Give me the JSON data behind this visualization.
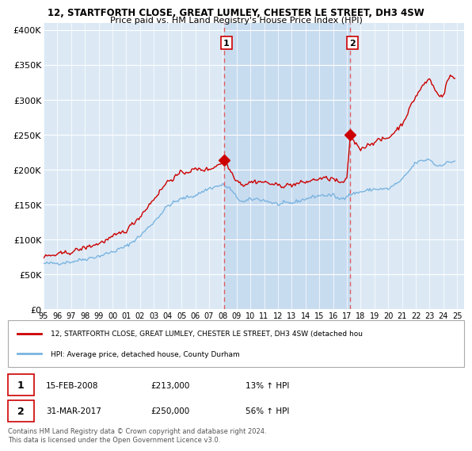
{
  "title1": "12, STARTFORTH CLOSE, GREAT LUMLEY, CHESTER LE STREET, DH3 4SW",
  "title2": "Price paid vs. HM Land Registry's House Price Index (HPI)",
  "ylabel_ticks": [
    "£0",
    "£50K",
    "£100K",
    "£150K",
    "£200K",
    "£250K",
    "£300K",
    "£350K",
    "£400K"
  ],
  "ytick_values": [
    0,
    50000,
    100000,
    150000,
    200000,
    250000,
    300000,
    350000,
    400000
  ],
  "ylim": [
    0,
    410000
  ],
  "xlim_start": 1995.0,
  "xlim_end": 2025.5,
  "background_color": "#dce9f5",
  "grid_color": "#ffffff",
  "hpi_line_color": "#7ab4e0",
  "price_line_color": "#cc0000",
  "shade_color": "#c8dcf0",
  "sale1_x": 2008.12,
  "sale1_y": 213000,
  "sale2_x": 2017.25,
  "sale2_y": 250000,
  "sale1_label": "1",
  "sale2_label": "2",
  "vline_color": "#e06060",
  "legend_line1": "12, STARTFORTH CLOSE, GREAT LUMLEY, CHESTER LE STREET, DH3 4SW (detached hou",
  "legend_line2": "HPI: Average price, detached house, County Durham",
  "table_row1": [
    "1",
    "15-FEB-2008",
    "£213,000",
    "13% ↑ HPI"
  ],
  "table_row2": [
    "2",
    "31-MAR-2017",
    "£250,000",
    "56% ↑ HPI"
  ],
  "footnote": "Contains HM Land Registry data © Crown copyright and database right 2024.\nThis data is licensed under the Open Government Licence v3.0.",
  "xtick_years": [
    1995,
    1996,
    1997,
    1998,
    1999,
    2000,
    2001,
    2002,
    2003,
    2004,
    2005,
    2006,
    2007,
    2008,
    2009,
    2010,
    2011,
    2012,
    2013,
    2014,
    2015,
    2016,
    2017,
    2018,
    2019,
    2020,
    2021,
    2022,
    2023,
    2024,
    2025
  ]
}
